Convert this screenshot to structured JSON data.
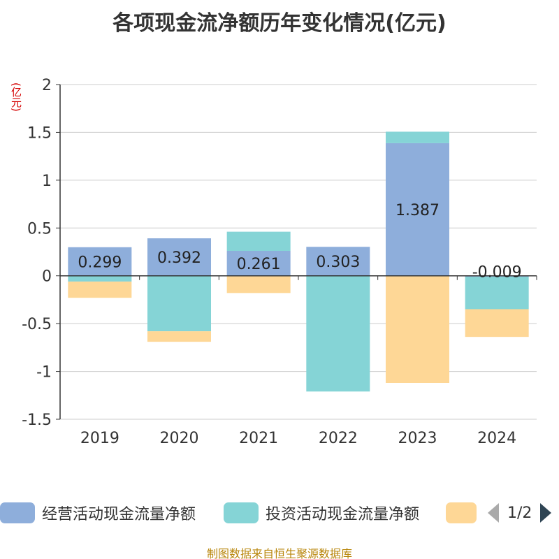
{
  "title": "各项现金流净额历年变化情况(亿元)",
  "source": "制图数据来自恒生聚源数据库",
  "chart_data": {
    "type": "bar",
    "stacked": true,
    "title": "各项现金流净额历年变化情况(亿元)",
    "ylabel": "(亿元)",
    "xlabel": "",
    "ylim": [
      -1.5,
      2
    ],
    "yticks": [
      -1.5,
      -1,
      -0.5,
      0,
      0.5,
      1,
      1.5,
      2
    ],
    "ytick_labels": [
      "-1.5",
      "-1",
      "-0.5",
      "0",
      "0.5",
      "1",
      "1.5",
      "2"
    ],
    "categories": [
      "2019",
      "2020",
      "2021",
      "2022",
      "2023",
      "2024"
    ],
    "grid": true,
    "legend_position": "bottom",
    "series": [
      {
        "name": "经营活动现金流量净额",
        "color": "#8eaedb",
        "values": [
          0.299,
          0.392,
          0.261,
          0.303,
          1.387,
          -0.009
        ],
        "labels": [
          "0.299",
          "0.392",
          "0.261",
          "0.303",
          "1.387",
          "-0.009"
        ]
      },
      {
        "name": "投资活动现金流量净额",
        "color": "#85d4d6",
        "values": [
          -0.06,
          -0.58,
          0.2,
          -1.21,
          0.12,
          -0.34
        ]
      },
      {
        "name": "",
        "color": "#fed796",
        "values": [
          -0.17,
          -0.11,
          -0.18,
          0,
          -1.12,
          -0.29
        ]
      }
    ]
  },
  "legend": {
    "items": [
      {
        "label": "经营活动现金流量净额",
        "color": "#8eaedb"
      },
      {
        "label": "投资活动现金流量净额",
        "color": "#85d4d6"
      },
      {
        "label": "",
        "color": "#fed796"
      }
    ],
    "page_text": "1/2"
  }
}
